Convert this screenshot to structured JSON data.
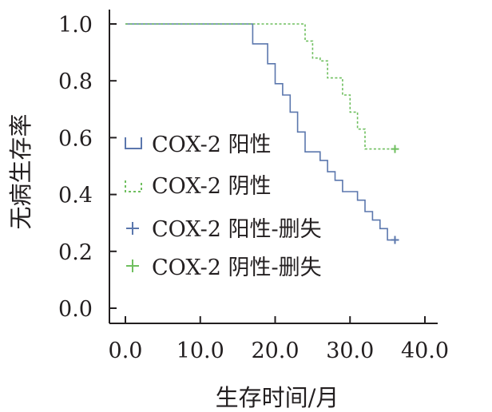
{
  "chart_data": {
    "type": "line",
    "subtype": "kaplan-meier",
    "title": "",
    "xlabel": "生存时间/月",
    "ylabel": "无病生存率",
    "xlim": [
      0,
      40
    ],
    "ylim": [
      0,
      1
    ],
    "x_ticks": [
      0,
      10,
      20,
      30,
      40
    ],
    "x_tick_labels": [
      "0.0",
      "10.0",
      "20.0",
      "30.0",
      "40.0"
    ],
    "y_ticks": [
      0,
      0.2,
      0.4,
      0.6,
      0.8,
      1.0
    ],
    "y_tick_labels": [
      "0.0",
      "0.2",
      "0.4",
      "0.6",
      "0.8",
      "1.0"
    ],
    "grid": false,
    "legend_position": "left",
    "series": [
      {
        "name": "COX-2 阳性",
        "color": "#5b77ad",
        "style": "solid",
        "points": [
          [
            0,
            1.0
          ],
          [
            17,
            1.0
          ],
          [
            17,
            0.93
          ],
          [
            19,
            0.93
          ],
          [
            19,
            0.86
          ],
          [
            20,
            0.86
          ],
          [
            20,
            0.79
          ],
          [
            21,
            0.79
          ],
          [
            21,
            0.75
          ],
          [
            22,
            0.75
          ],
          [
            22,
            0.69
          ],
          [
            23,
            0.69
          ],
          [
            23,
            0.62
          ],
          [
            24,
            0.62
          ],
          [
            24,
            0.55
          ],
          [
            26,
            0.55
          ],
          [
            26,
            0.52
          ],
          [
            27,
            0.52
          ],
          [
            27,
            0.48
          ],
          [
            28,
            0.48
          ],
          [
            28,
            0.45
          ],
          [
            29,
            0.45
          ],
          [
            29,
            0.41
          ],
          [
            31,
            0.41
          ],
          [
            31,
            0.38
          ],
          [
            32,
            0.38
          ],
          [
            32,
            0.34
          ],
          [
            33,
            0.34
          ],
          [
            33,
            0.31
          ],
          [
            34,
            0.31
          ],
          [
            34,
            0.28
          ],
          [
            35,
            0.28
          ],
          [
            35,
            0.24
          ],
          [
            36,
            0.24
          ]
        ]
      },
      {
        "name": "COX-2 阴性",
        "color": "#6fbf5f",
        "style": "dashed",
        "points": [
          [
            0,
            1.0
          ],
          [
            24,
            1.0
          ],
          [
            24,
            0.94
          ],
          [
            25,
            0.94
          ],
          [
            25,
            0.88
          ],
          [
            26,
            0.88
          ],
          [
            26,
            0.87
          ],
          [
            27,
            0.87
          ],
          [
            27,
            0.81
          ],
          [
            29,
            0.81
          ],
          [
            29,
            0.75
          ],
          [
            30,
            0.75
          ],
          [
            30,
            0.69
          ],
          [
            31,
            0.69
          ],
          [
            31,
            0.63
          ],
          [
            32,
            0.63
          ],
          [
            32,
            0.56
          ],
          [
            36,
            0.56
          ]
        ]
      },
      {
        "name": "COX-2 阳性-删失",
        "color": "#5b77ad",
        "marker": "+",
        "points": [
          [
            36,
            0.24
          ]
        ]
      },
      {
        "name": "COX-2 阴性-删失",
        "color": "#6fbf5f",
        "marker": "+",
        "points": [
          [
            36,
            0.56
          ]
        ]
      }
    ]
  },
  "legend": {
    "items": [
      {
        "label": "COX-2 阳性",
        "color": "#5b77ad",
        "symbol": "step-solid"
      },
      {
        "label": "COX-2 阴性",
        "color": "#6fbf5f",
        "symbol": "step-dashed"
      },
      {
        "label": "COX-2 阳性-删失",
        "color": "#5b77ad",
        "symbol": "plus"
      },
      {
        "label": "COX-2 阴性-删失",
        "color": "#6fbf5f",
        "symbol": "plus"
      }
    ]
  }
}
